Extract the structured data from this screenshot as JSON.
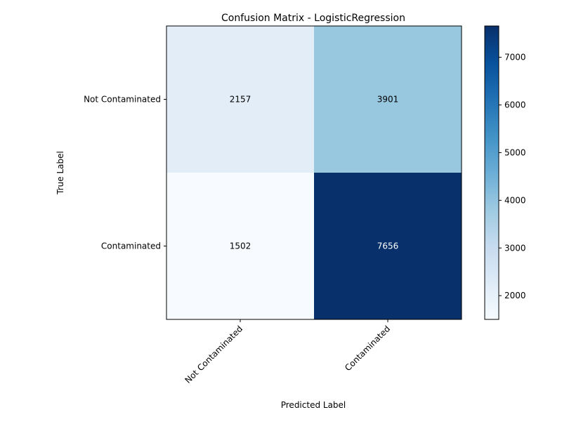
{
  "chart_data": {
    "type": "heatmap",
    "title": "Confusion Matrix - LogisticRegression",
    "xlabel": "Predicted Label",
    "ylabel": "True Label",
    "x_categories": [
      "Not Contaminated",
      "Contaminated"
    ],
    "y_categories": [
      "Not Contaminated",
      "Contaminated"
    ],
    "values": [
      [
        2157,
        3901
      ],
      [
        1502,
        7656
      ]
    ],
    "colormap": "Blues",
    "colorbar": {
      "min": 1502,
      "max": 7656,
      "ticks": [
        2000,
        3000,
        4000,
        5000,
        6000,
        7000
      ]
    },
    "text_colors": {
      "light_cell": "#000000",
      "dark_cell": "#ffffff"
    },
    "grid": false
  }
}
